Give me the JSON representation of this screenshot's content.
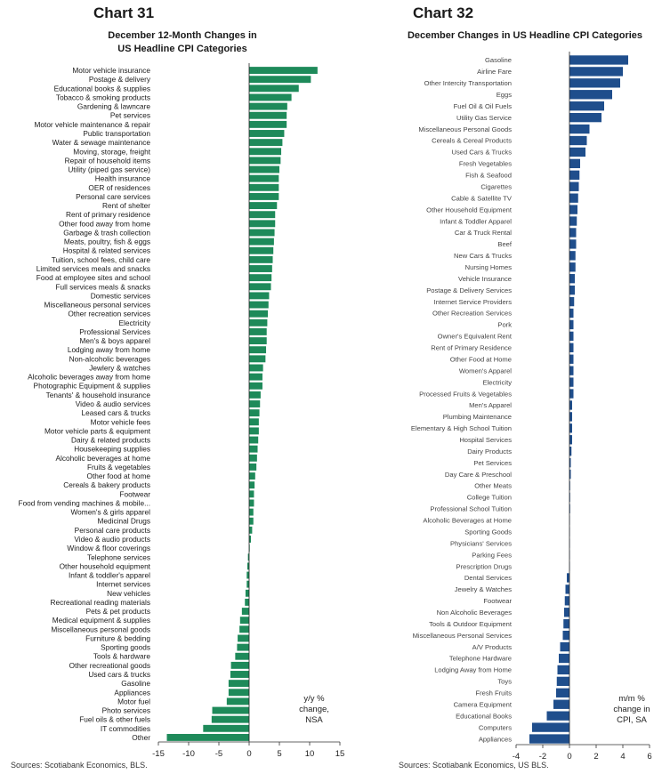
{
  "chart_data": [
    {
      "type": "bar",
      "orientation": "horizontal",
      "chart_label": "Chart 31",
      "title": "December 12-Month Changes in US Headline CPI Categories",
      "title_lines": [
        "December 12-Month Changes in",
        "US Headline CPI Categories"
      ],
      "note_lines": [
        "y/y %",
        "change,",
        "NSA"
      ],
      "source": "Sources: Scotiabank Economics, BLS.",
      "color": "#1e8a5a",
      "xlim": [
        -15,
        15
      ],
      "xticks": [
        "-15",
        "-10",
        "-5",
        "0",
        "5",
        "10",
        "15"
      ],
      "grid": false,
      "categories": [
        "Motor vehicle insurance",
        "Postage & delivery",
        "Educational books & supplies",
        "Tobacco & smoking products",
        "Gardening & lawncare",
        "Pet services",
        "Motor vehicle maintenance & repair",
        "Public transportation",
        "Water & sewage maintenance",
        "Moving, storage, freight",
        "Repair of household items",
        "Utility (piped gas service)",
        "Health insurance",
        "OER of residences",
        "Personal care services",
        "Rent of shelter",
        "Rent of primary residence",
        "Other food away from home",
        "Garbage & trash collection",
        "Meats, poultry, fish & eggs",
        "Hospital & related services",
        "Tuition, school fees, child care",
        "Limited services meals and snacks",
        "Food at employee sites and school",
        "Full services meals & snacks",
        "Domestic services",
        "Miscellaneous personal services",
        "Other recreation services",
        "Electricity",
        "Professional Services",
        "Men's & boys apparel",
        "Lodging away from home",
        "Non-alcoholic beverages",
        "Jewlery & watches",
        "Alcoholic beverages away from home",
        "Photographic Equipment & supplies",
        "Tenants' & household insurance",
        "Video & audio services",
        "Leased cars & trucks",
        "Motor vehicle fees",
        "Motor vehicle parts & equipment",
        "Dairy & related products",
        "Housekeeping supplies",
        "Alcoholic beverages at home",
        "Fruits & vegetables",
        "Other food at home",
        "Cereals & bakery products",
        "Footwear",
        "Food from vending machines & mobile...",
        "Women's & girls apparel",
        "Medicinal Drugs",
        "Personal care products",
        "Video & audio products",
        "Window & floor coverings",
        "Telephone services",
        "Other household equipment",
        "Infant & toddler's apparel",
        "Internet services",
        "New vehicles",
        "Recreational reading materials",
        "Pets & pet products",
        "Medical equipment & supplies",
        "Miscellaneous personal goods",
        "Furniture & bedding",
        "Sporting goods",
        "Tools & hardware",
        "Other recreational goods",
        "Used cars & trucks",
        "Gasoline",
        "Appliances",
        "Motor fuel",
        "Photo services",
        "Fuel oils & other fuels",
        "IT commodities",
        "Other"
      ],
      "values": [
        11.3,
        10.2,
        8.2,
        7.0,
        6.3,
        6.2,
        6.2,
        5.8,
        5.5,
        5.3,
        5.2,
        5.0,
        4.9,
        4.9,
        4.9,
        4.6,
        4.3,
        4.3,
        4.2,
        4.1,
        4.0,
        3.9,
        3.8,
        3.7,
        3.6,
        3.3,
        3.2,
        3.1,
        3.0,
        2.9,
        2.9,
        2.8,
        2.7,
        2.3,
        2.2,
        2.2,
        1.9,
        1.8,
        1.7,
        1.6,
        1.6,
        1.5,
        1.4,
        1.3,
        1.2,
        1.0,
        0.9,
        0.8,
        0.8,
        0.7,
        0.7,
        0.5,
        0.3,
        0.1,
        -0.2,
        -0.3,
        -0.4,
        -0.4,
        -0.6,
        -0.7,
        -1.2,
        -1.5,
        -1.6,
        -1.9,
        -2.0,
        -2.3,
        -3.0,
        -3.1,
        -3.4,
        -3.4,
        -3.7,
        -6.1,
        -6.2,
        -7.6,
        -13.6
      ]
    },
    {
      "type": "bar",
      "orientation": "horizontal",
      "chart_label": "Chart 32",
      "title": "December Changes in US Headline CPI Categories",
      "title_lines": [
        "December Changes in US Headline CPI Categories"
      ],
      "note_lines": [
        "m/m %",
        "change in",
        "CPI, SA"
      ],
      "source": "Sources: Scotiabank Economics, US BLS.",
      "color": "#1f4e8c",
      "xlim": [
        -4,
        6
      ],
      "xticks": [
        "-4",
        "-2",
        "0",
        "2",
        "4",
        "6"
      ],
      "grid": false,
      "categories": [
        "Gasoline",
        "Airline Fare",
        "Other Intercity Transportation",
        "Eggs",
        "Fuel Oil & Oil Fuels",
        "Utility Gas Service",
        "Miscellaneous Personal Goods",
        "Cereals & Cereal Products",
        "Used Cars & Trucks",
        "Fresh Vegetables",
        "Fish & Seafood",
        "Cigarettes",
        "Cable & Satellite TV",
        "Other Household Equipment",
        "Infant & Toddler Apparel",
        "Car & Truck Rental",
        "Beef",
        "New Cars & Trucks",
        "Nursing Homes",
        "Vehicle Insurance",
        "Postage & Delivery Services",
        "Internet Service Providers",
        "Other Recreation Services",
        "Pork",
        "Owner's Equivalent Rent",
        "Rent of Primary Residence",
        "Other Food at Home",
        "Women's Apparel",
        "Electricity",
        "Processed Fruits & Vegetables",
        "Men's Apparel",
        "Plumbing Maintenance",
        "Elementary & High School Tuition",
        "Hospital Services",
        "Dairy Products",
        "Pet Services",
        "Day Care & Preschool",
        "Other Meats",
        "College Tuition",
        "Professional School Tuition",
        "Alcoholic Beverages at Home",
        "Sporting Goods",
        "Physicians' Services",
        "Parking Fees",
        "Prescription Drugs",
        "Dental Services",
        "Jewelry & Watches",
        "Footwear",
        "Non Alcoholic Beverages",
        "Tools & Outdoor Equipment",
        "Miscellaneous Personal Services",
        "A/V Products",
        "Telephone Hardware",
        "Lodging Away from Home",
        "Toys",
        "Fresh Fruits",
        "Camera Equipment",
        "Educational Books",
        "Computers",
        "Appliances"
      ],
      "values": [
        4.4,
        4.0,
        3.8,
        3.2,
        2.6,
        2.4,
        1.5,
        1.3,
        1.2,
        0.8,
        0.75,
        0.7,
        0.65,
        0.6,
        0.55,
        0.5,
        0.5,
        0.45,
        0.45,
        0.4,
        0.4,
        0.35,
        0.3,
        0.3,
        0.3,
        0.3,
        0.3,
        0.3,
        0.3,
        0.3,
        0.2,
        0.2,
        0.2,
        0.2,
        0.15,
        0.1,
        0.1,
        0.05,
        0.05,
        0.05,
        0.0,
        0.0,
        0.0,
        0.0,
        0.0,
        -0.2,
        -0.3,
        -0.35,
        -0.4,
        -0.45,
        -0.5,
        -0.7,
        -0.8,
        -0.9,
        -0.95,
        -1.0,
        -1.2,
        -1.7,
        -2.8,
        -3.0
      ]
    }
  ]
}
